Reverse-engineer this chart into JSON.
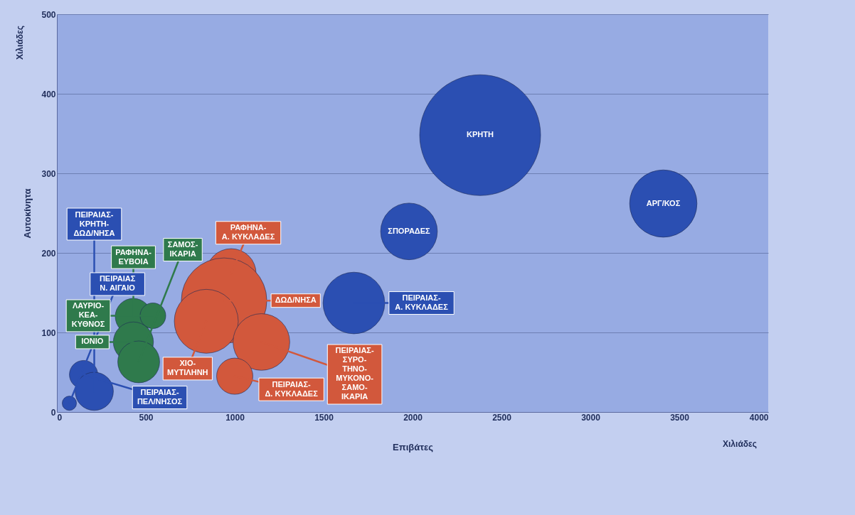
{
  "chart_data": {
    "type": "bubble",
    "xlabel": "Επιβάτες",
    "ylabel": "Αυτοκίνητα",
    "xlim": [
      0,
      4000
    ],
    "xticks": [
      0,
      500,
      1000,
      1500,
      2000,
      2500,
      3000,
      3500,
      4000
    ],
    "ylim": [
      0,
      500
    ],
    "yticks": [
      0,
      100,
      200,
      300,
      400,
      500
    ],
    "grid": "y",
    "marker": "circle",
    "series": [
      {
        "color": "#2b4fb2",
        "x": [
          2380,
          3410,
          1980,
          1670,
          70,
          150,
          210
        ],
        "values": [
          348,
          262,
          227,
          137,
          11,
          47,
          26
        ],
        "sizes": [
          1,
          0.31,
          0.22,
          0.26,
          0.014,
          0.055,
          0.1
        ]
      },
      {
        "color": "#2f7a4c",
        "x": [
          430,
          540,
          430,
          460
        ],
        "values": [
          120,
          121,
          88,
          63
        ],
        "sizes": [
          0.09,
          0.045,
          0.11,
          0.12
        ]
      },
      {
        "color": "#d2583c",
        "x": [
          980,
          940,
          840,
          1150,
          1000
        ],
        "values": [
          174,
          140,
          114,
          88,
          45
        ],
        "sizes": [
          0.17,
          0.5,
          0.28,
          0.22,
          0.09
        ]
      }
    ],
    "annotations": [
      "Χιλιάδες",
      "Χιλιάδες",
      {
        "text": "ΚΡΗΤΗ",
        "x": 2380,
        "y": 348
      },
      {
        "text": "ΑΡΓ/ΚΟΣ",
        "x": 3410,
        "y": 262
      },
      {
        "text": "ΣΠΟΡΑΔΕΣ",
        "x": 1980,
        "y": 227
      },
      {
        "text": "ΠΕΙΡΑΙΑΣ-Α. ΚΥΚΛΑΔΕΣ",
        "x": 1670,
        "y": 137
      },
      {
        "text": "ΠΕΙΡΑΙΑΣ Ν. ΑΙΓΑΙΟ",
        "x": 70,
        "y": 11
      },
      {
        "text": "ΠΕΙΡΑΙΑΣ-ΠΕΛ/ΝΗΣΟΣ",
        "x": 150,
        "y": 47
      },
      {
        "text": "ΠΕΙΡΑΙΑΣ-ΚΡΗΤΗ-ΔΩΔ/ΝΗΣΑ",
        "x": 210,
        "y": 26
      },
      {
        "text": "ΡΑΦΗΝΑ-ΕΥΒΟΙΑ",
        "x": 430,
        "y": 120
      },
      {
        "text": "ΛΑΥΡΙΟ-ΚΕΑ-ΚΥΘΝΟΣ",
        "x": 540,
        "y": 121
      },
      {
        "text": "ΙΟΝΙΟ",
        "x": 430,
        "y": 88
      },
      {
        "text": "ΣΑΜΟΣ-ΙΚΑΡΙΑ",
        "x": 460,
        "y": 63
      },
      {
        "text": "ΡΑΦΗΝΑ-Α. ΚΥΚΛΑΔΕΣ",
        "x": 980,
        "y": 174
      },
      {
        "text": "ΔΩΔ/ΝΗΣΑ",
        "x": 940,
        "y": 140
      },
      {
        "text": "ΧΙΟ-ΜΥΤΙΛΗΝΗ",
        "x": 840,
        "y": 114
      },
      {
        "text": "ΠΕΙΡΑΙΑΣ-ΣΥΡΟ-ΤΗΝΟ-ΜΥΚΟΝΟ-ΣΑΜΟ-ΙΚΑΡΙΑ",
        "x": 1150,
        "y": 88
      },
      {
        "text": "ΠΕΙΡΑΙΑΣ-Δ. ΚΥΚΛΑΔΕΣ",
        "x": 1000,
        "y": 45
      }
    ]
  }
}
